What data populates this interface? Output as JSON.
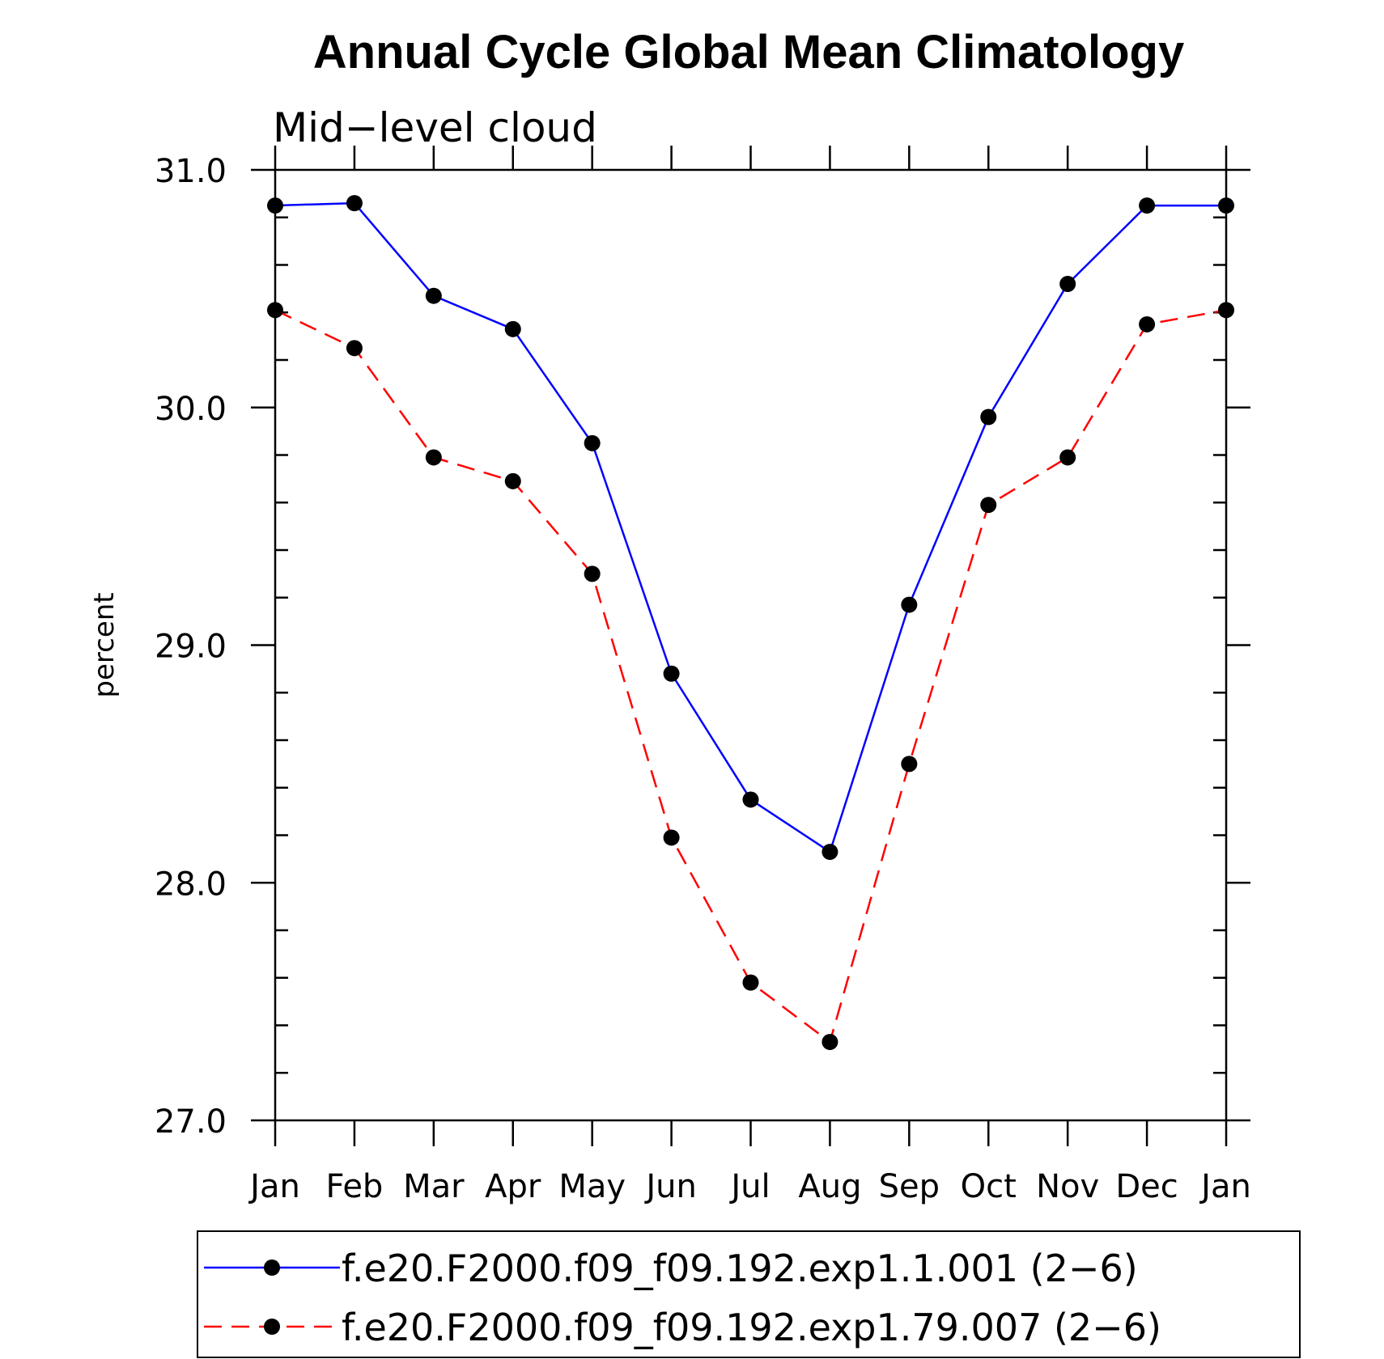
{
  "chart_data": {
    "type": "line",
    "title": "Annual Cycle Global Mean Climatology",
    "subtitle": "Mid−level cloud",
    "xlabel": "",
    "ylabel": "percent",
    "categories": [
      "Jan",
      "Feb",
      "Mar",
      "Apr",
      "May",
      "Jun",
      "Jul",
      "Aug",
      "Sep",
      "Oct",
      "Nov",
      "Dec",
      "Jan"
    ],
    "ylim": [
      27.0,
      31.0
    ],
    "yticks": [
      "27.0",
      "28.0",
      "29.0",
      "30.0",
      "31.0"
    ],
    "grid": false,
    "legend_position": "bottom",
    "series": [
      {
        "name": "f.e20.F2000.f09_f09.192.exp1.1.001 (2−6)",
        "color": "#0000ff",
        "dash": "solid",
        "values": [
          30.85,
          30.86,
          30.47,
          30.33,
          29.85,
          28.88,
          28.35,
          28.13,
          29.17,
          29.96,
          30.52,
          30.85,
          30.85
        ]
      },
      {
        "name": "f.e20.F2000.f09_f09.192.exp1.79.007 (2−6)",
        "color": "#ff0000",
        "dash": "dashed",
        "values": [
          30.41,
          30.25,
          29.79,
          29.69,
          29.3,
          28.19,
          27.58,
          27.33,
          28.5,
          29.59,
          29.79,
          30.35,
          30.41
        ]
      }
    ]
  }
}
